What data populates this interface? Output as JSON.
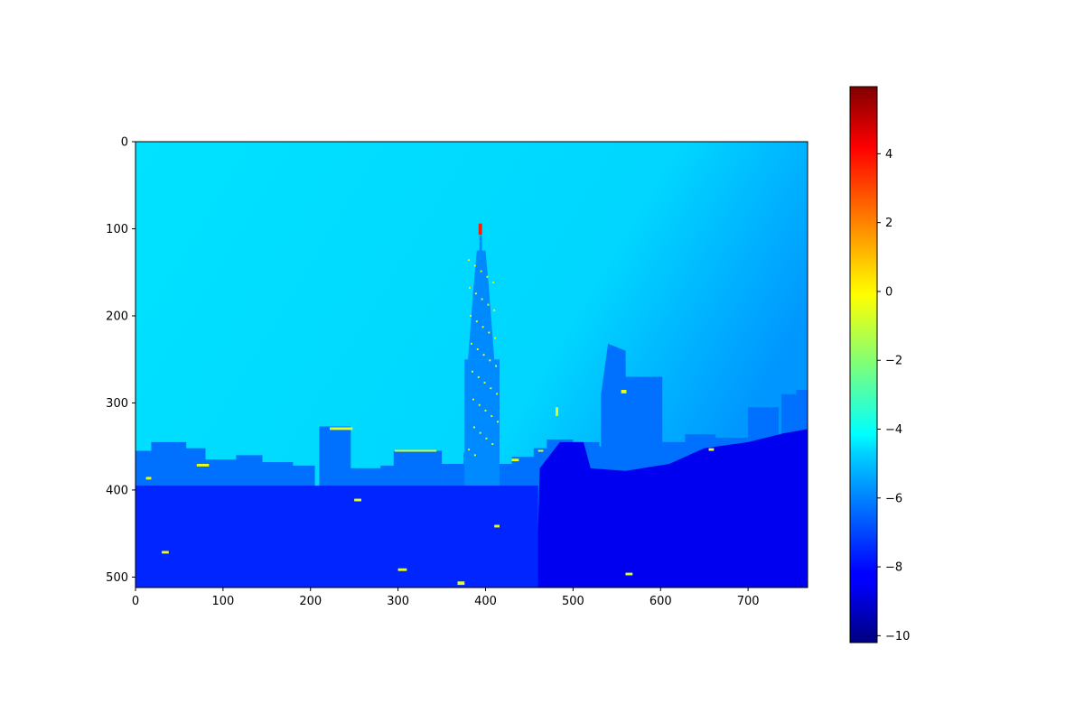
{
  "chart_data": {
    "type": "heatmap",
    "title": "",
    "xlabel": "",
    "ylabel": "",
    "colormap": "jet",
    "image_width": 768,
    "image_height": 512,
    "xlim": [
      0,
      768
    ],
    "ylim": [
      512,
      0
    ],
    "xticks": [
      0,
      100,
      200,
      300,
      400,
      500,
      600,
      700
    ],
    "xtick_labels": [
      "0",
      "100",
      "200",
      "300",
      "400",
      "500",
      "600",
      "700"
    ],
    "yticks": [
      0,
      100,
      200,
      300,
      400,
      500
    ],
    "ytick_labels": [
      "0",
      "100",
      "200",
      "300",
      "400",
      "500"
    ],
    "colorbar": {
      "vmin": -10.2,
      "vmax": 5.95,
      "ticks": [
        4,
        2,
        0,
        -2,
        -4,
        -6,
        -8,
        -10
      ],
      "tick_labels": [
        "4",
        "2",
        "0",
        "−2",
        "−4",
        "−6",
        "−8",
        "−10"
      ]
    },
    "scene": {
      "sky_value": -4.6,
      "sky_top_right_value": -5.8,
      "skyline_value": -6.4,
      "hillside_value": -8.4,
      "ground_value": -7.6,
      "tower_value": -6.0,
      "tower_tip_value": 3.5,
      "light_value": -0.5
    }
  }
}
